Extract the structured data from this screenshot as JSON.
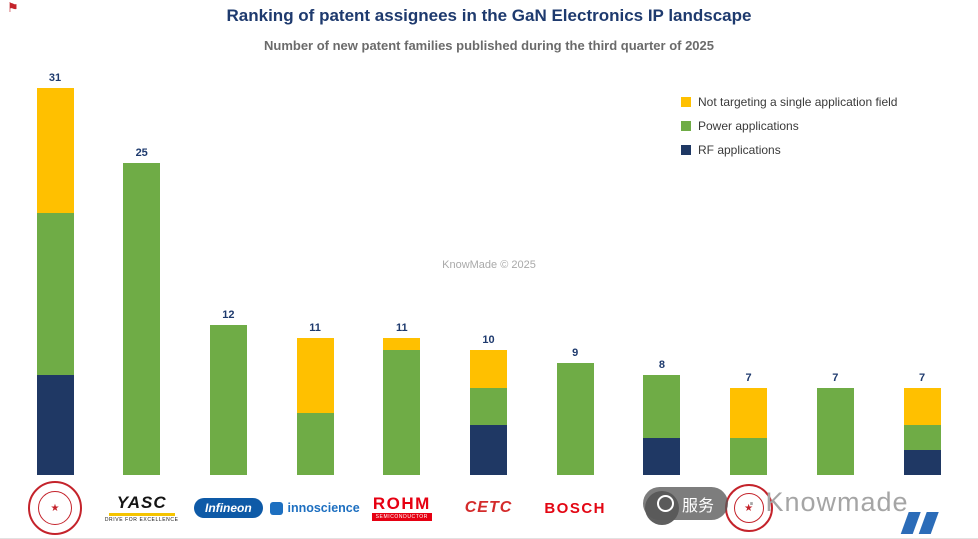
{
  "title": "Ranking of patent assignees in the GaN Electronics IP landscape",
  "subtitle": "Number of new patent families published during the third quarter of 2025",
  "watermark_center": "KnowMade © 2025",
  "watermark_overlay": {
    "pill_text": "服务",
    "brand_text": "· Knowmade"
  },
  "legend": [
    {
      "label": "Not targeting a single application field",
      "color": "#FFC000"
    },
    {
      "label": "Power applications",
      "color": "#6FAC46"
    },
    {
      "label": "RF applications",
      "color": "#1F3864"
    }
  ],
  "chart_data": {
    "type": "bar",
    "stacked": true,
    "title": "Ranking of patent assignees in the GaN Electronics IP landscape",
    "subtitle": "Number of new patent families published during the third quarter of 2025",
    "categories": [
      "(red seal logo)",
      "YASC",
      "Infineon",
      "Innoscience",
      "ROHM",
      "CETC",
      "BOSCH",
      "(logo obscured by watermark)",
      "(red seal logo)",
      "(logo obscured by watermark)",
      "(partial blue logo)"
    ],
    "series": [
      {
        "name": "RF applications",
        "color": "#1F3864",
        "values": [
          8,
          0,
          0,
          0,
          0,
          4,
          0,
          3,
          0,
          0,
          2
        ]
      },
      {
        "name": "Power applications",
        "color": "#6FAC46",
        "values": [
          13,
          25,
          12,
          5,
          10,
          3,
          9,
          5,
          3,
          7,
          2
        ]
      },
      {
        "name": "Not targeting a single application field",
        "color": "#FFC000",
        "values": [
          10,
          0,
          0,
          6,
          1,
          3,
          0,
          0,
          4,
          0,
          3
        ]
      }
    ],
    "totals": [
      31,
      25,
      12,
      11,
      11,
      10,
      9,
      8,
      7,
      7,
      7
    ],
    "ylim": [
      0,
      33
    ],
    "grid": false,
    "legend_position": "top-right",
    "value_label_color": "#1E3A6E"
  },
  "logos": [
    {
      "style": "seal",
      "size": 54
    },
    {
      "style": "yasc",
      "text": "YASC",
      "tagline": "DRIVE FOR EXCELLENCE"
    },
    {
      "style": "infineon",
      "text": "Infineon"
    },
    {
      "style": "inno",
      "text": "innoscience"
    },
    {
      "style": "rohm",
      "text": "ROHM",
      "tagline": "SEMICONDUCTOR"
    },
    {
      "style": "cetc",
      "text": "CETC"
    },
    {
      "style": "bosch",
      "text": "BOSCH"
    },
    {
      "style": "circle"
    },
    {
      "style": "seal",
      "size": 48
    },
    {
      "style": "none"
    },
    {
      "style": "partial"
    }
  ],
  "corner_marker": "⚑"
}
